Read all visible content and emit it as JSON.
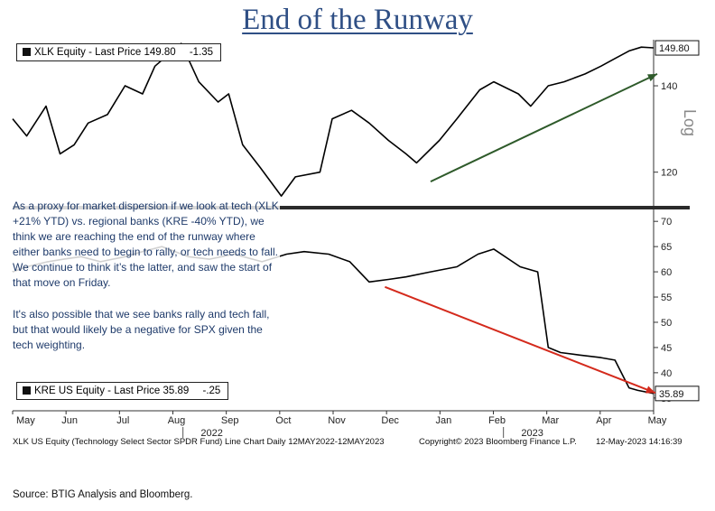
{
  "title": "End of the Runway",
  "chart_data": {
    "type": "line",
    "x_axis": {
      "months": [
        "May",
        "Jun",
        "Jul",
        "Aug",
        "Sep",
        "Oct",
        "Nov",
        "Dec",
        "Jan",
        "Feb",
        "Mar",
        "Apr",
        "May"
      ],
      "year_labels": [
        {
          "year": "2022",
          "month": "Sep"
        },
        {
          "year": "2023",
          "month": "Mar"
        }
      ],
      "range": [
        "2022-05-12",
        "2023-05-12"
      ]
    },
    "panels": [
      {
        "name": "upper",
        "scale": "log",
        "scale_label": "Log",
        "ylim": [
          113,
          152
        ],
        "yticks": [
          120,
          140
        ],
        "last_value_tag": "149.80",
        "series": [
          {
            "legend": "XLK Equity - Last Price",
            "last_price": "149.80",
            "change": "-1.35",
            "color": "#000000",
            "dates": [
              "2022-05-12",
              "2022-05-20",
              "2022-05-31",
              "2022-06-08",
              "2022-06-16",
              "2022-06-24",
              "2022-07-05",
              "2022-07-15",
              "2022-07-25",
              "2022-08-01",
              "2022-08-16",
              "2022-08-26",
              "2022-09-06",
              "2022-09-12",
              "2022-09-20",
              "2022-09-30",
              "2022-10-12",
              "2022-10-20",
              "2022-11-03",
              "2022-11-10",
              "2022-11-21",
              "2022-12-01",
              "2022-12-12",
              "2022-12-22",
              "2022-12-28",
              "2023-01-10",
              "2023-01-20",
              "2023-02-02",
              "2023-02-10",
              "2023-02-24",
              "2023-03-03",
              "2023-03-13",
              "2023-03-22",
              "2023-04-03",
              "2023-04-12",
              "2023-04-20",
              "2023-04-28",
              "2023-05-05",
              "2023-05-12"
            ],
            "values": [
              132,
              128,
              135,
              124,
              126,
              131,
              133,
              140,
              138,
              145,
              151,
              141,
              136,
              138,
              126,
              121,
              115,
              119,
              120,
              132,
              134,
              131,
              127,
              124,
              122,
              127,
              132,
              139,
              141,
              138,
              135,
              140,
              141,
              143,
              145,
              147,
              149,
              150,
              149.8
            ]
          }
        ]
      },
      {
        "name": "lower",
        "scale": "linear",
        "ylim": [
          33,
          72
        ],
        "yticks": [
          35,
          40,
          45,
          50,
          55,
          60,
          65,
          70
        ],
        "last_value_tag": "35.89",
        "series": [
          {
            "legend": "KRE US Equity - Last Price",
            "last_price": "35.89",
            "change": "-.25",
            "color": "#000000",
            "dates": [
              "2022-05-12",
              "2022-05-20",
              "2022-06-01",
              "2022-06-10",
              "2022-06-20",
              "2022-07-01",
              "2022-07-15",
              "2022-07-25",
              "2022-08-05",
              "2022-08-20",
              "2022-09-01",
              "2022-09-15",
              "2022-10-01",
              "2022-10-15",
              "2022-10-25",
              "2022-11-08",
              "2022-11-20",
              "2022-12-01",
              "2022-12-12",
              "2022-12-22",
              "2023-01-05",
              "2023-01-20",
              "2023-02-01",
              "2023-02-10",
              "2023-02-25",
              "2023-03-07",
              "2023-03-09",
              "2023-03-13",
              "2023-03-20",
              "2023-03-31",
              "2023-04-12",
              "2023-04-20",
              "2023-04-28",
              "2023-05-03",
              "2023-05-12"
            ],
            "values": [
              60,
              61,
              62,
              62.5,
              63,
              62,
              63,
              64,
              65,
              63,
              62.5,
              63.5,
              62,
              63.5,
              64,
              63.5,
              62,
              58,
              58.5,
              59,
              60,
              61,
              63.5,
              64.5,
              61,
              60,
              55,
              45,
              44,
              43.5,
              43,
              42.5,
              37,
              36.5,
              35.89
            ]
          }
        ]
      }
    ],
    "annotations": {
      "upper_arrow_color": "#2e5a2a",
      "lower_arrow_color": "#d42a1c"
    }
  },
  "note": {
    "paragraph1": "As a proxy for market dispersion if we look at tech (XLK +21% YTD) vs. regional banks (KRE -40% YTD), we think we are reaching the end of the runway where either banks need to begin to rally, or tech needs to fall. We continue to think it’s the latter, and saw the start of that move on Friday.",
    "paragraph2": "It's also possible that we see banks rally and tech fall, but that would likely be a negative for SPX given the tech weighting."
  },
  "footer": {
    "left": "XLK US Equity (Technology Select Sector SPDR Fund) Line Chart  Daily 12MAY2022-12MAY2023",
    "center": "Copyright© 2023 Bloomberg Finance L.P.",
    "right": "12-May-2023 14:16:39"
  },
  "source": "Source: BTIG Analysis and Bloomberg."
}
